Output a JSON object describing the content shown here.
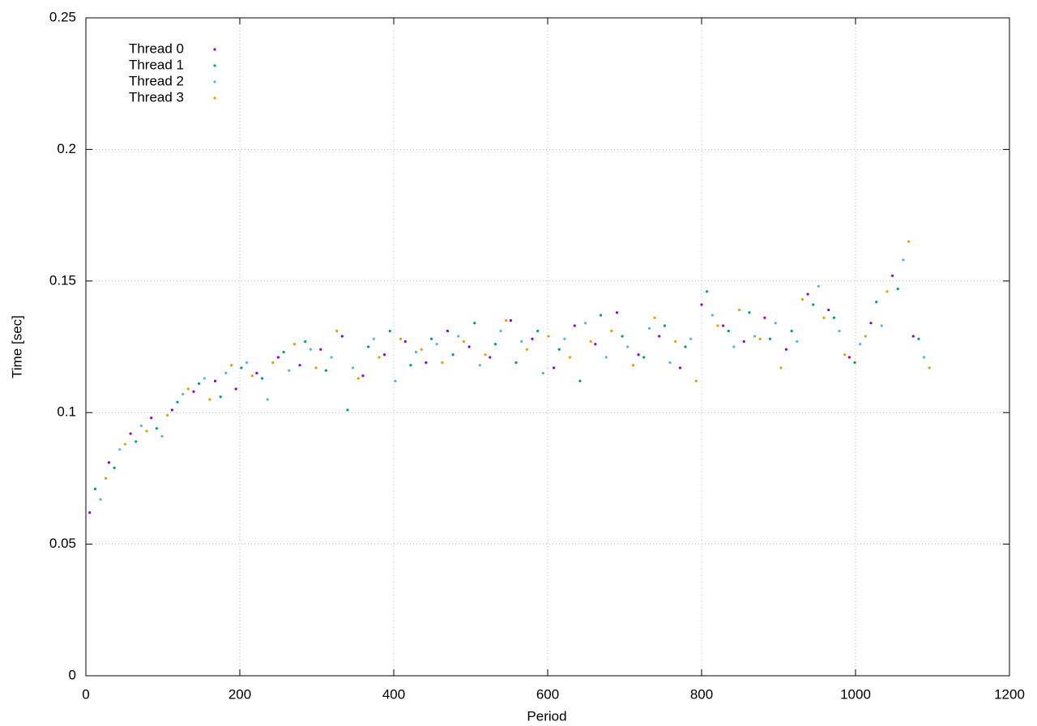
{
  "chart_data": {
    "type": "scatter",
    "x_label": "Period",
    "y_label": "Time [sec]",
    "xlim": [
      0,
      1200
    ],
    "xticks": [
      0,
      200,
      400,
      600,
      800,
      1000,
      1200
    ],
    "ylim": [
      0,
      0.25
    ],
    "yticks": [
      0,
      0.05,
      0.1,
      0.15,
      0.2,
      0.25
    ],
    "grid": true,
    "legend": "top-left",
    "series": [
      {
        "name": "Thread 0",
        "color": "#9400d3",
        "x": [
          5,
          30,
          58,
          85,
          112,
          140,
          168,
          195,
          222,
          250,
          278,
          305,
          333,
          360,
          388,
          415,
          442,
          470,
          498,
          525,
          552,
          580,
          608,
          635,
          662,
          690,
          718,
          745,
          772,
          800,
          828,
          855,
          882,
          910,
          938,
          965,
          992,
          1020,
          1048,
          1075
        ],
        "values": [
          0.062,
          0.081,
          0.092,
          0.098,
          0.101,
          0.108,
          0.112,
          0.109,
          0.115,
          0.121,
          0.118,
          0.124,
          0.129,
          0.114,
          0.122,
          0.127,
          0.119,
          0.131,
          0.125,
          0.121,
          0.135,
          0.128,
          0.117,
          0.133,
          0.126,
          0.138,
          0.122,
          0.129,
          0.117,
          0.141,
          0.133,
          0.127,
          0.136,
          0.124,
          0.145,
          0.139,
          0.121,
          0.134,
          0.152,
          0.129
        ]
      },
      {
        "name": "Thread 1",
        "color": "#009e73",
        "x": [
          12,
          37,
          65,
          92,
          119,
          147,
          175,
          202,
          229,
          257,
          285,
          312,
          340,
          367,
          395,
          422,
          449,
          477,
          505,
          532,
          559,
          587,
          615,
          642,
          669,
          697,
          725,
          752,
          779,
          807,
          835,
          862,
          889,
          917,
          945,
          972,
          999,
          1027,
          1055,
          1082
        ],
        "values": [
          0.071,
          0.079,
          0.089,
          0.094,
          0.104,
          0.111,
          0.106,
          0.117,
          0.113,
          0.123,
          0.127,
          0.116,
          0.101,
          0.125,
          0.131,
          0.118,
          0.128,
          0.122,
          0.134,
          0.126,
          0.119,
          0.131,
          0.124,
          0.112,
          0.137,
          0.129,
          0.121,
          0.133,
          0.125,
          0.146,
          0.131,
          0.138,
          0.128,
          0.131,
          0.141,
          0.136,
          0.119,
          0.142,
          0.147,
          0.128
        ]
      },
      {
        "name": "Thread 2",
        "color": "#56b4e9",
        "x": [
          19,
          44,
          72,
          99,
          126,
          154,
          182,
          209,
          236,
          264,
          292,
          319,
          347,
          374,
          402,
          429,
          456,
          484,
          512,
          539,
          566,
          594,
          622,
          649,
          676,
          704,
          732,
          759,
          786,
          814,
          842,
          869,
          896,
          924,
          952,
          979,
          1006,
          1034,
          1062,
          1089
        ],
        "values": [
          0.067,
          0.086,
          0.095,
          0.091,
          0.107,
          0.113,
          0.115,
          0.119,
          0.105,
          0.116,
          0.124,
          0.121,
          0.117,
          0.128,
          0.112,
          0.123,
          0.126,
          0.129,
          0.118,
          0.131,
          0.127,
          0.115,
          0.128,
          0.134,
          0.121,
          0.125,
          0.132,
          0.119,
          0.128,
          0.137,
          0.125,
          0.129,
          0.134,
          0.127,
          0.148,
          0.131,
          0.126,
          0.133,
          0.158,
          0.121
        ]
      },
      {
        "name": "Thread 3",
        "color": "#e69f00",
        "x": [
          26,
          51,
          79,
          106,
          133,
          161,
          189,
          216,
          243,
          271,
          299,
          326,
          354,
          381,
          409,
          436,
          463,
          491,
          519,
          546,
          573,
          601,
          629,
          656,
          683,
          711,
          739,
          766,
          793,
          821,
          849,
          876,
          903,
          931,
          959,
          986,
          1013,
          1041,
          1069,
          1096
        ],
        "values": [
          0.075,
          0.088,
          0.093,
          0.099,
          0.109,
          0.105,
          0.118,
          0.114,
          0.119,
          0.126,
          0.117,
          0.131,
          0.113,
          0.121,
          0.128,
          0.124,
          0.119,
          0.127,
          0.122,
          0.135,
          0.124,
          0.129,
          0.121,
          0.127,
          0.131,
          0.118,
          0.136,
          0.127,
          0.112,
          0.133,
          0.139,
          0.128,
          0.117,
          0.143,
          0.136,
          0.122,
          0.129,
          0.146,
          0.165,
          0.117
        ]
      }
    ]
  }
}
